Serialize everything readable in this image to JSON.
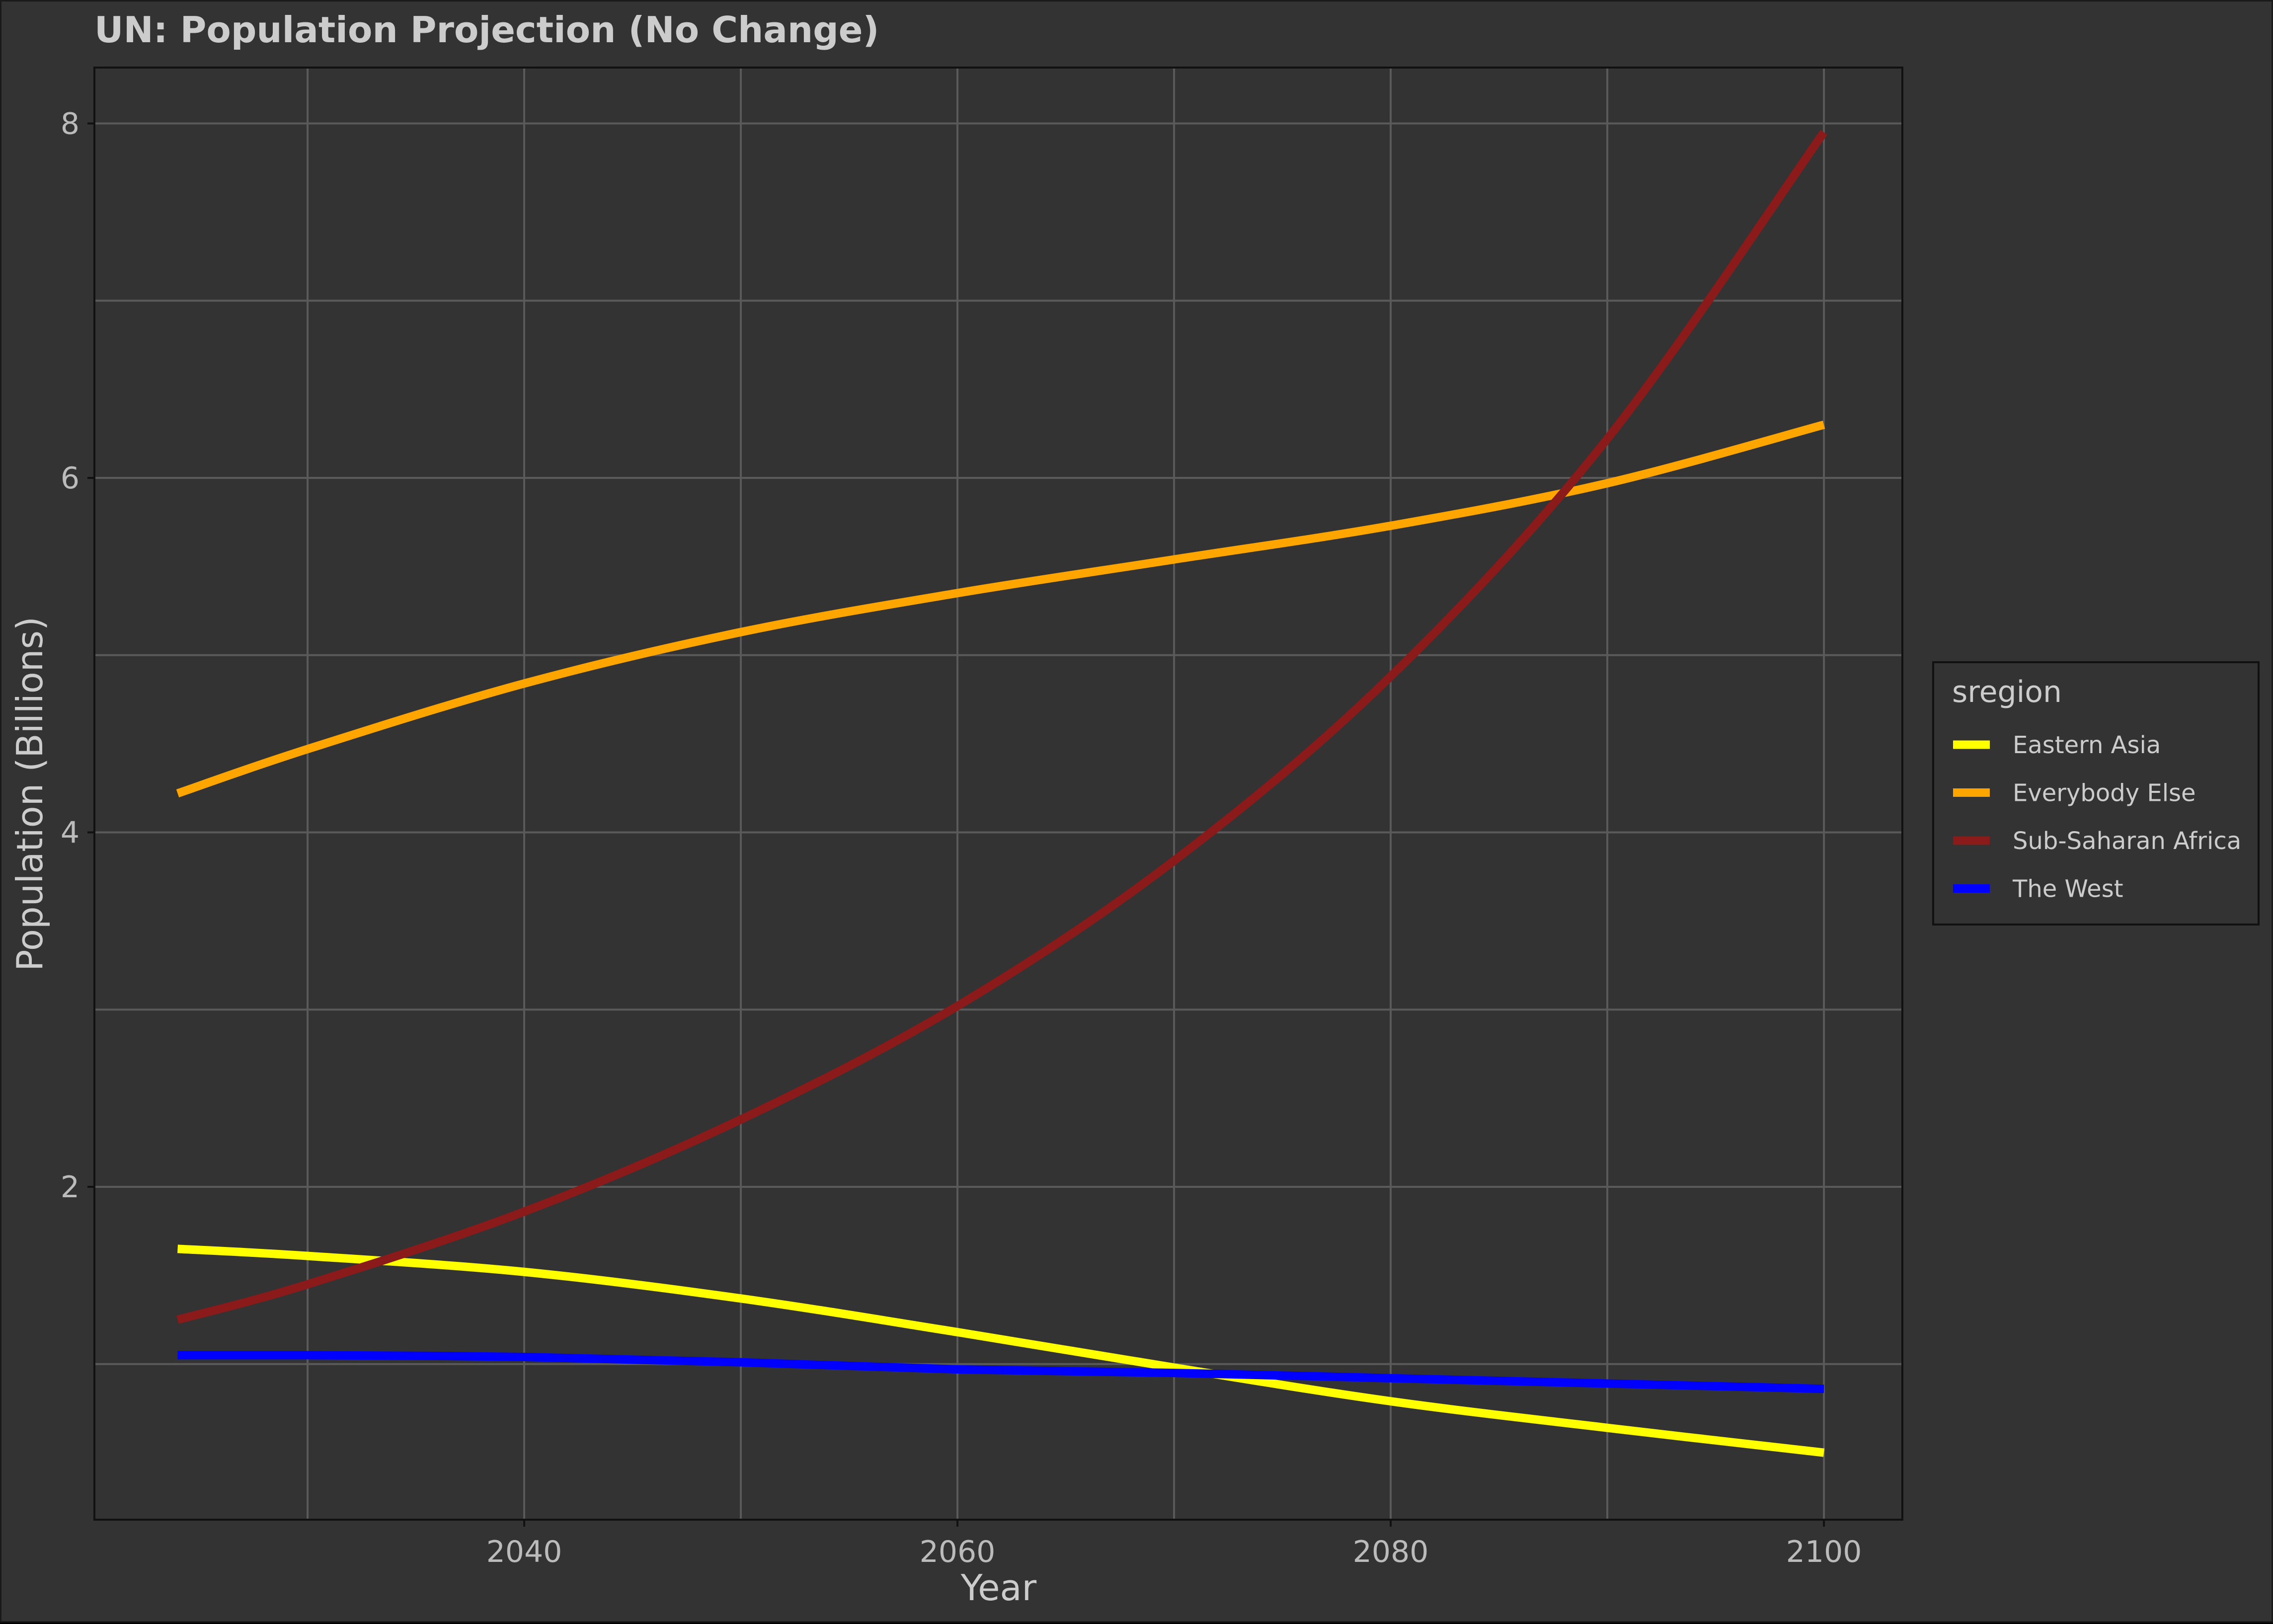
{
  "chart_data": {
    "type": "line",
    "title": "UN: Population Projection (No Change)",
    "xlabel": "Year",
    "ylabel": "Population (Billions)",
    "xlim": [
      2024,
      2100
    ],
    "ylim": [
      0.2,
      8.3
    ],
    "x_ticks": [
      2040,
      2060,
      2080,
      2100
    ],
    "y_ticks": [
      2,
      4,
      6,
      8
    ],
    "grid": true,
    "legend": {
      "title": "sregion",
      "position": "right",
      "entries": [
        "Eastern Asia",
        "Everybody Else",
        "Sub-Saharan Africa",
        "The West"
      ]
    },
    "x": [
      2024,
      2030,
      2040,
      2050,
      2060,
      2070,
      2080,
      2090,
      2100
    ],
    "series": [
      {
        "name": "Eastern Asia",
        "color": "#ffff00",
        "values": [
          1.65,
          1.61,
          1.52,
          1.37,
          1.18,
          0.98,
          0.79,
          0.64,
          0.5
        ]
      },
      {
        "name": "Everybody Else",
        "color": "#ffa500",
        "values": [
          4.22,
          4.47,
          4.84,
          5.13,
          5.35,
          5.54,
          5.73,
          5.97,
          6.3
        ]
      },
      {
        "name": "Sub-Saharan Africa",
        "color": "#8b1a1a",
        "values": [
          1.25,
          1.45,
          1.86,
          2.38,
          3.02,
          3.84,
          4.88,
          6.22,
          7.95
        ]
      },
      {
        "name": "The West",
        "color": "#0000ff",
        "values": [
          1.05,
          1.05,
          1.04,
          1.01,
          0.97,
          0.95,
          0.92,
          0.89,
          0.86
        ]
      }
    ]
  }
}
